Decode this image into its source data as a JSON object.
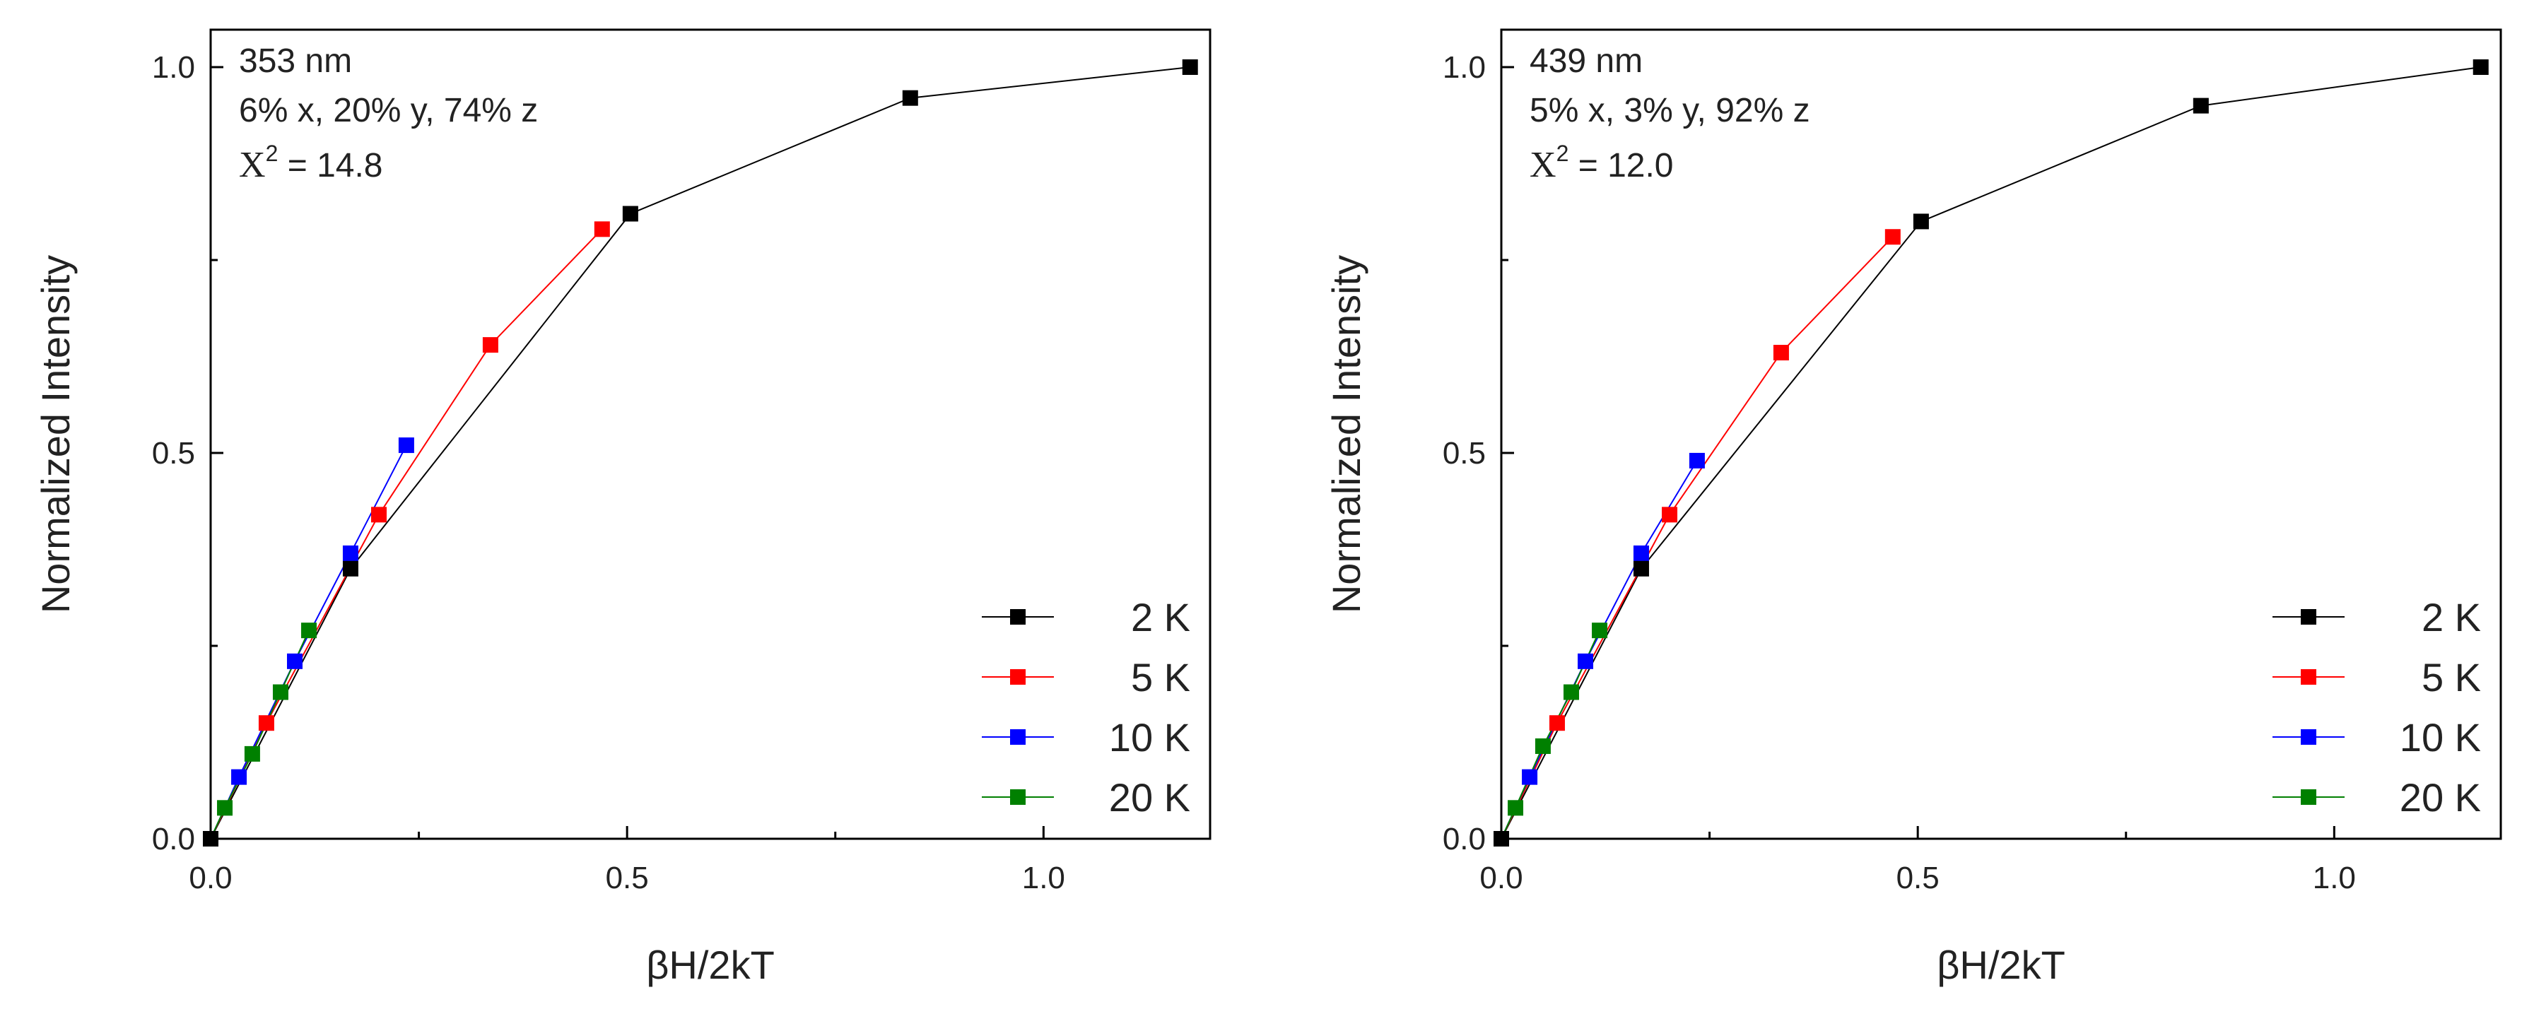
{
  "chart_data": [
    {
      "type": "line",
      "panel": "left",
      "xlabel": "βH/2kT",
      "ylabel": "Normalized Intensity",
      "xlim": [
        0.0,
        1.2
      ],
      "ylim": [
        0.0,
        1.05
      ],
      "xticks": [
        0.0,
        0.5,
        1.0
      ],
      "xtick_labels": [
        "0.0",
        "0.5",
        "1.0"
      ],
      "yticks": [
        0.0,
        0.5,
        1.0
      ],
      "ytick_labels": [
        "0.0",
        "0.5",
        "1.0"
      ],
      "annotations": {
        "wavelength": "353 nm",
        "composition": "6% x, 20% y, 74% z",
        "chi_symbol": "X",
        "chi_exponent": "2",
        "chi_value": " = 14.8"
      },
      "legend_position": "bottom-right",
      "series": [
        {
          "name": "2 K",
          "color": "#000000",
          "x": [
            0.0,
            0.168,
            0.504,
            0.84,
            1.176
          ],
          "y": [
            0.0,
            0.35,
            0.81,
            0.96,
            1.0
          ]
        },
        {
          "name": "5 K",
          "color": "#ff0000",
          "x": [
            0.0,
            0.067,
            0.202,
            0.336,
            0.47
          ],
          "y": [
            0.0,
            0.15,
            0.42,
            0.64,
            0.79
          ]
        },
        {
          "name": "10 K",
          "color": "#0000ff",
          "x": [
            0.0,
            0.034,
            0.101,
            0.168,
            0.235
          ],
          "y": [
            0.0,
            0.08,
            0.23,
            0.37,
            0.51
          ]
        },
        {
          "name": "20 K",
          "color": "#008000",
          "x": [
            0.0,
            0.017,
            0.05,
            0.084,
            0.118
          ],
          "y": [
            0.0,
            0.04,
            0.11,
            0.19,
            0.27
          ]
        }
      ]
    },
    {
      "type": "line",
      "panel": "right",
      "xlabel": "βH/2kT",
      "ylabel": "Normalized Intensity",
      "xlim": [
        0.0,
        1.2
      ],
      "ylim": [
        0.0,
        1.05
      ],
      "xticks": [
        0.0,
        0.5,
        1.0
      ],
      "xtick_labels": [
        "0.0",
        "0.5",
        "1.0"
      ],
      "yticks": [
        0.0,
        0.5,
        1.0
      ],
      "ytick_labels": [
        "0.0",
        "0.5",
        "1.0"
      ],
      "annotations": {
        "wavelength": "439 nm",
        "composition": "5% x, 3% y, 92% z",
        "chi_symbol": "X",
        "chi_exponent": "2",
        "chi_value": " = 12.0"
      },
      "legend_position": "bottom-right",
      "series": [
        {
          "name": "2 K",
          "color": "#000000",
          "x": [
            0.0,
            0.168,
            0.504,
            0.84,
            1.176
          ],
          "y": [
            0.0,
            0.35,
            0.8,
            0.95,
            1.0
          ]
        },
        {
          "name": "5 K",
          "color": "#ff0000",
          "x": [
            0.0,
            0.067,
            0.202,
            0.336,
            0.47
          ],
          "y": [
            0.0,
            0.15,
            0.42,
            0.63,
            0.78
          ]
        },
        {
          "name": "10 K",
          "color": "#0000ff",
          "x": [
            0.0,
            0.034,
            0.101,
            0.168,
            0.235
          ],
          "y": [
            0.0,
            0.08,
            0.23,
            0.37,
            0.49
          ]
        },
        {
          "name": "20 K",
          "color": "#008000",
          "x": [
            0.0,
            0.017,
            0.05,
            0.084,
            0.118
          ],
          "y": [
            0.0,
            0.04,
            0.12,
            0.19,
            0.27
          ]
        }
      ]
    }
  ]
}
